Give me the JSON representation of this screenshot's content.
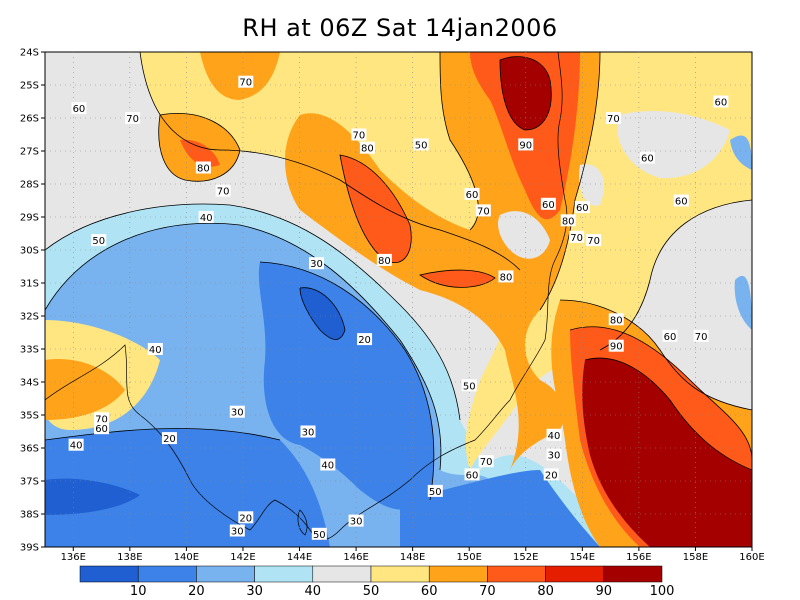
{
  "title": "RH at 06Z Sat 14jan2006",
  "lat_labels": [
    "24S",
    "25S",
    "26S",
    "27S",
    "28S",
    "29S",
    "30S",
    "31S",
    "32S",
    "33S",
    "34S",
    "35S",
    "36S",
    "37S",
    "38S",
    "39S"
  ],
  "lon_labels": [
    "136E",
    "138E",
    "140E",
    "142E",
    "144E",
    "146E",
    "148E",
    "150E",
    "152E",
    "154E",
    "156E",
    "158E",
    "160E"
  ],
  "colorbar": {
    "colors": [
      "#1f5fd1",
      "#3c82e8",
      "#78b3f0",
      "#b0e4f5",
      "#e6e6e6",
      "#ffe680",
      "#ffa31a",
      "#ff5a1a",
      "#e61e00",
      "#a50000"
    ],
    "labels": [
      "10",
      "20",
      "30",
      "40",
      "50",
      "60",
      "70",
      "80",
      "90",
      "100"
    ]
  },
  "contour_labels": [
    {
      "text": "70",
      "lon": 142.1,
      "lat": 24.9
    },
    {
      "text": "60",
      "lon": 136.2,
      "lat": 25.7
    },
    {
      "text": "70",
      "lon": 138.1,
      "lat": 26.0
    },
    {
      "text": "80",
      "lon": 140.6,
      "lat": 27.5
    },
    {
      "text": "70",
      "lon": 141.3,
      "lat": 28.2
    },
    {
      "text": "70",
      "lon": 146.1,
      "lat": 26.5
    },
    {
      "text": "80",
      "lon": 146.4,
      "lat": 26.9
    },
    {
      "text": "50",
      "lon": 148.3,
      "lat": 26.8
    },
    {
      "text": "90",
      "lon": 152.0,
      "lat": 26.8
    },
    {
      "text": "60",
      "lon": 150.1,
      "lat": 28.3
    },
    {
      "text": "70",
      "lon": 150.5,
      "lat": 28.8
    },
    {
      "text": "60",
      "lon": 152.8,
      "lat": 28.6
    },
    {
      "text": "80",
      "lon": 153.5,
      "lat": 29.1
    },
    {
      "text": "70",
      "lon": 153.8,
      "lat": 29.6
    },
    {
      "text": "60",
      "lon": 154.0,
      "lat": 28.7
    },
    {
      "text": "70",
      "lon": 154.4,
      "lat": 29.7
    },
    {
      "text": "70",
      "lon": 155.1,
      "lat": 26.0
    },
    {
      "text": "60",
      "lon": 158.9,
      "lat": 25.5
    },
    {
      "text": "60",
      "lon": 156.3,
      "lat": 27.2
    },
    {
      "text": "60",
      "lon": 157.5,
      "lat": 28.5
    },
    {
      "text": "40",
      "lon": 140.7,
      "lat": 29.0
    },
    {
      "text": "50",
      "lon": 136.9,
      "lat": 29.7
    },
    {
      "text": "30",
      "lon": 144.6,
      "lat": 30.4
    },
    {
      "text": "80",
      "lon": 147.0,
      "lat": 30.3
    },
    {
      "text": "80",
      "lon": 151.3,
      "lat": 30.8
    },
    {
      "text": "20",
      "lon": 146.3,
      "lat": 32.7
    },
    {
      "text": "40",
      "lon": 138.9,
      "lat": 33.0
    },
    {
      "text": "80",
      "lon": 155.2,
      "lat": 32.1
    },
    {
      "text": "90",
      "lon": 155.2,
      "lat": 32.9
    },
    {
      "text": "60",
      "lon": 157.1,
      "lat": 32.6
    },
    {
      "text": "70",
      "lon": 158.2,
      "lat": 32.6
    },
    {
      "text": "50",
      "lon": 150.0,
      "lat": 34.1
    },
    {
      "text": "70",
      "lon": 137.0,
      "lat": 35.1
    },
    {
      "text": "60",
      "lon": 137.0,
      "lat": 35.4
    },
    {
      "text": "40",
      "lon": 136.1,
      "lat": 35.9
    },
    {
      "text": "20",
      "lon": 139.4,
      "lat": 35.7
    },
    {
      "text": "30",
      "lon": 141.8,
      "lat": 34.9
    },
    {
      "text": "30",
      "lon": 144.3,
      "lat": 35.5
    },
    {
      "text": "40",
      "lon": 153.0,
      "lat": 35.6
    },
    {
      "text": "30",
      "lon": 153.0,
      "lat": 36.2
    },
    {
      "text": "70",
      "lon": 150.6,
      "lat": 36.4
    },
    {
      "text": "60",
      "lon": 150.1,
      "lat": 36.8
    },
    {
      "text": "40",
      "lon": 145.0,
      "lat": 36.5
    },
    {
      "text": "20",
      "lon": 152.9,
      "lat": 36.8
    },
    {
      "text": "50",
      "lon": 148.8,
      "lat": 37.3
    },
    {
      "text": "30",
      "lon": 146.0,
      "lat": 38.2
    },
    {
      "text": "20",
      "lon": 142.1,
      "lat": 38.1
    },
    {
      "text": "30",
      "lon": 141.8,
      "lat": 38.5
    },
    {
      "text": "50",
      "lon": 144.7,
      "lat": 38.6
    }
  ]
}
